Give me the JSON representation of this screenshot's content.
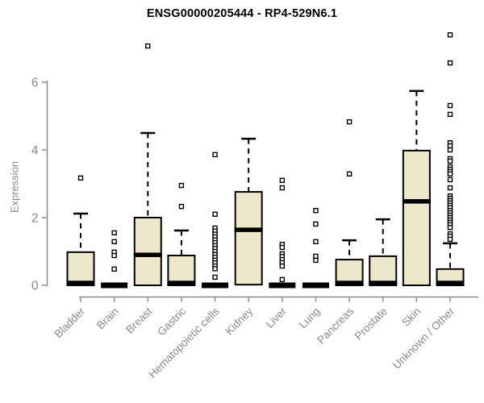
{
  "page": {
    "background": "#ffffff"
  },
  "chart_data": {
    "type": "boxplot",
    "title": "ENSG00000205444 - RP4-529N6.1",
    "ylabel": "Expression",
    "xlabel": "",
    "ylim": [
      0,
      7.5
    ],
    "yticks": [
      0,
      2,
      4,
      6
    ],
    "grid": false,
    "legend_position": "none",
    "colors": {
      "box_fill": "#ede8cc",
      "box_stroke": "#000000",
      "median": "#000000",
      "whisker": "#000000",
      "outlier_stroke": "#000000",
      "outlier_fill": "#ffffff",
      "axis": "#8c8c8c",
      "tick_label": "#8a8a8a",
      "title": "#000000"
    },
    "categories": [
      "Bladder",
      "Brain",
      "Breast",
      "Gastric",
      "Hematopoietic cells",
      "Kidney",
      "Liver",
      "Lung",
      "Pancreas",
      "Prostate",
      "Skin",
      "Unknown / Other"
    ],
    "boxes": [
      {
        "category": "Bladder",
        "q1": 0,
        "median": 0.07,
        "q3": 0.98,
        "whisker_low": 0,
        "whisker_high": 2.12,
        "outliers": [
          3.17
        ]
      },
      {
        "category": "Brain",
        "q1": 0,
        "median": 0,
        "q3": 0,
        "whisker_low": 0,
        "whisker_high": 0,
        "outliers": [
          1.55,
          1.29,
          0.98,
          0.88,
          0.48
        ]
      },
      {
        "category": "Breast",
        "q1": 0,
        "median": 0.9,
        "q3": 2.0,
        "whisker_low": 0,
        "whisker_high": 4.5,
        "outliers": [
          7.07
        ]
      },
      {
        "category": "Gastric",
        "q1": 0,
        "median": 0.07,
        "q3": 0.88,
        "whisker_low": 0,
        "whisker_high": 1.62,
        "outliers": [
          2.95,
          2.33
        ]
      },
      {
        "category": "Hematopoietic cells",
        "q1": 0,
        "median": 0,
        "q3": 0,
        "whisker_low": 0,
        "whisker_high": 0,
        "outliers": [
          3.86,
          2.1,
          1.69,
          1.6,
          1.51,
          1.43,
          1.34,
          1.26,
          1.17,
          1.09,
          1.0,
          0.91,
          0.83,
          0.74,
          0.66,
          0.57,
          0.49,
          0.24
        ]
      },
      {
        "category": "Kidney",
        "q1": 0.02,
        "median": 1.64,
        "q3": 2.76,
        "whisker_low": 0.02,
        "whisker_high": 4.33,
        "outliers": []
      },
      {
        "category": "Liver",
        "q1": 0,
        "median": 0,
        "q3": 0,
        "whisker_low": 0,
        "whisker_high": 0,
        "outliers": [
          3.1,
          2.88,
          1.21,
          1.12,
          0.93,
          0.85,
          0.76,
          0.67,
          0.57,
          0.17
        ]
      },
      {
        "category": "Lung",
        "q1": 0,
        "median": 0,
        "q3": 0,
        "whisker_low": 0,
        "whisker_high": 0,
        "outliers": [
          2.21,
          1.81,
          1.29,
          0.86,
          0.74
        ]
      },
      {
        "category": "Pancreas",
        "q1": 0,
        "median": 0.07,
        "q3": 0.76,
        "whisker_low": 0,
        "whisker_high": 1.33,
        "outliers": [
          4.83,
          3.29
        ]
      },
      {
        "category": "Prostate",
        "q1": 0,
        "median": 0.07,
        "q3": 0.86,
        "whisker_low": 0,
        "whisker_high": 1.95,
        "outliers": []
      },
      {
        "category": "Skin",
        "q1": 0,
        "median": 2.48,
        "q3": 3.98,
        "whisker_low": 0,
        "whisker_high": 5.74,
        "outliers": []
      },
      {
        "category": "Unknown / Other",
        "q1": 0,
        "median": 0.07,
        "q3": 0.48,
        "whisker_low": 0,
        "whisker_high": 1.24,
        "outliers": [
          7.4,
          6.57,
          5.31,
          5.05,
          4.21,
          4.12,
          4.0,
          3.74,
          3.67,
          3.5,
          3.43,
          3.36,
          3.29,
          3.12,
          2.88,
          2.64,
          2.57,
          2.5,
          2.43,
          2.36,
          2.29,
          2.21,
          2.14,
          2.07,
          2.0,
          1.93,
          1.86,
          1.79,
          1.71,
          1.52,
          1.45,
          1.36
        ]
      }
    ]
  }
}
